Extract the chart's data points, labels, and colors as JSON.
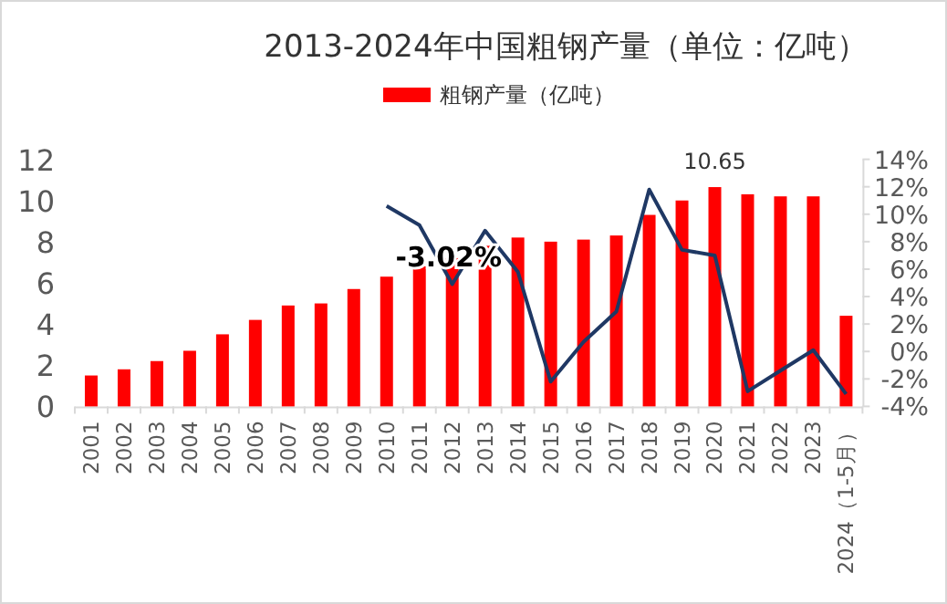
{
  "chart_data": {
    "type": "bar",
    "title": "2013-2024年中国粗钢产量（单位：亿吨）",
    "categories": [
      "2001",
      "2002",
      "2003",
      "2004",
      "2005",
      "2006",
      "2007",
      "2008",
      "2009",
      "2010",
      "2011",
      "2012",
      "2013",
      "2014",
      "2015",
      "2016",
      "2017",
      "2018",
      "2019",
      "2020",
      "2021",
      "2022",
      "2023",
      "2024（1-5月）"
    ],
    "series": [
      {
        "name": "粗钢产量（亿吨）",
        "color": "#ff0000",
        "values": [
          1.5,
          1.8,
          2.2,
          2.7,
          3.5,
          4.2,
          4.9,
          5.0,
          5.7,
          6.3,
          6.8,
          7.2,
          7.8,
          8.2,
          8.0,
          8.1,
          8.3,
          9.3,
          10.0,
          10.65,
          10.3,
          10.2,
          10.2,
          4.4
        ],
        "value_labels": [
          null,
          null,
          null,
          null,
          null,
          null,
          null,
          null,
          null,
          null,
          null,
          null,
          null,
          null,
          null,
          null,
          null,
          null,
          null,
          "10.65",
          null,
          null,
          null,
          null
        ]
      },
      {
        "type": "line",
        "axis": "y2",
        "color": "#1f3864",
        "values": [
          null,
          null,
          null,
          null,
          null,
          null,
          null,
          null,
          null,
          10.6,
          9.2,
          4.9,
          8.8,
          5.8,
          -2.2,
          0.7,
          2.9,
          11.8,
          7.4,
          7.0,
          -2.9,
          -1.4,
          0.1,
          -3.1
        ]
      }
    ],
    "ylim": [
      0,
      12
    ],
    "yticks": [
      0,
      2,
      4,
      6,
      8,
      10,
      12
    ],
    "y2lim": [
      -4,
      14
    ],
    "y2ticks": [
      {
        "value": -4,
        "label": "-4%"
      },
      {
        "value": -2,
        "label": "-2%"
      },
      {
        "value": 0,
        "label": "0%"
      },
      {
        "value": 2,
        "label": "2%"
      },
      {
        "value": 4,
        "label": "4%"
      },
      {
        "value": 6,
        "label": "6%"
      },
      {
        "value": 8,
        "label": "8%"
      },
      {
        "value": 10,
        "label": "10%"
      },
      {
        "value": 12,
        "label": "12%"
      },
      {
        "value": 14,
        "label": "14%"
      }
    ],
    "annotations": [
      "-3.02%"
    ],
    "legend": "top",
    "marker": "none",
    "line_style": "solid"
  }
}
